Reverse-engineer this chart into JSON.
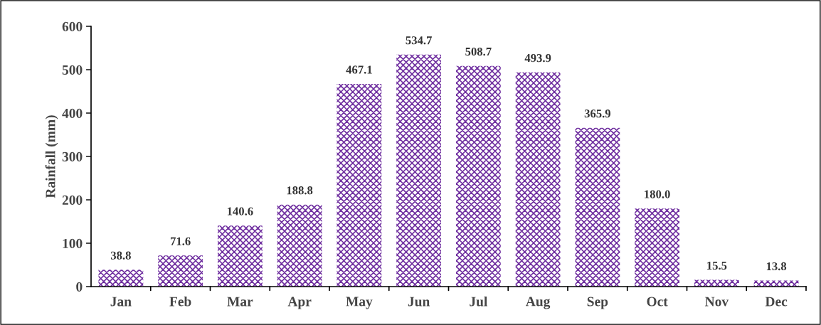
{
  "chart_data": {
    "type": "bar",
    "ylabel": "Rainfall (mm)",
    "categories": [
      "Jan",
      "Feb",
      "Mar",
      "Apr",
      "May",
      "Jun",
      "Jul",
      "Aug",
      "Sep",
      "Oct",
      "Nov",
      "Dec"
    ],
    "values": [
      38.8,
      71.6,
      140.6,
      188.8,
      467.1,
      534.7,
      508.7,
      493.9,
      365.9,
      180.0,
      15.5,
      13.8
    ],
    "value_labels": [
      "38.8",
      "71.6",
      "140.6",
      "188.8",
      "467.1",
      "534.7",
      "508.7",
      "493.9",
      "365.9",
      "180.0",
      "15.5",
      "13.8"
    ],
    "color": "#7030a0",
    "ylim": [
      0,
      600
    ],
    "yticks": [
      0,
      100,
      200,
      300,
      400,
      500,
      600
    ],
    "grid": false,
    "legend": false
  }
}
